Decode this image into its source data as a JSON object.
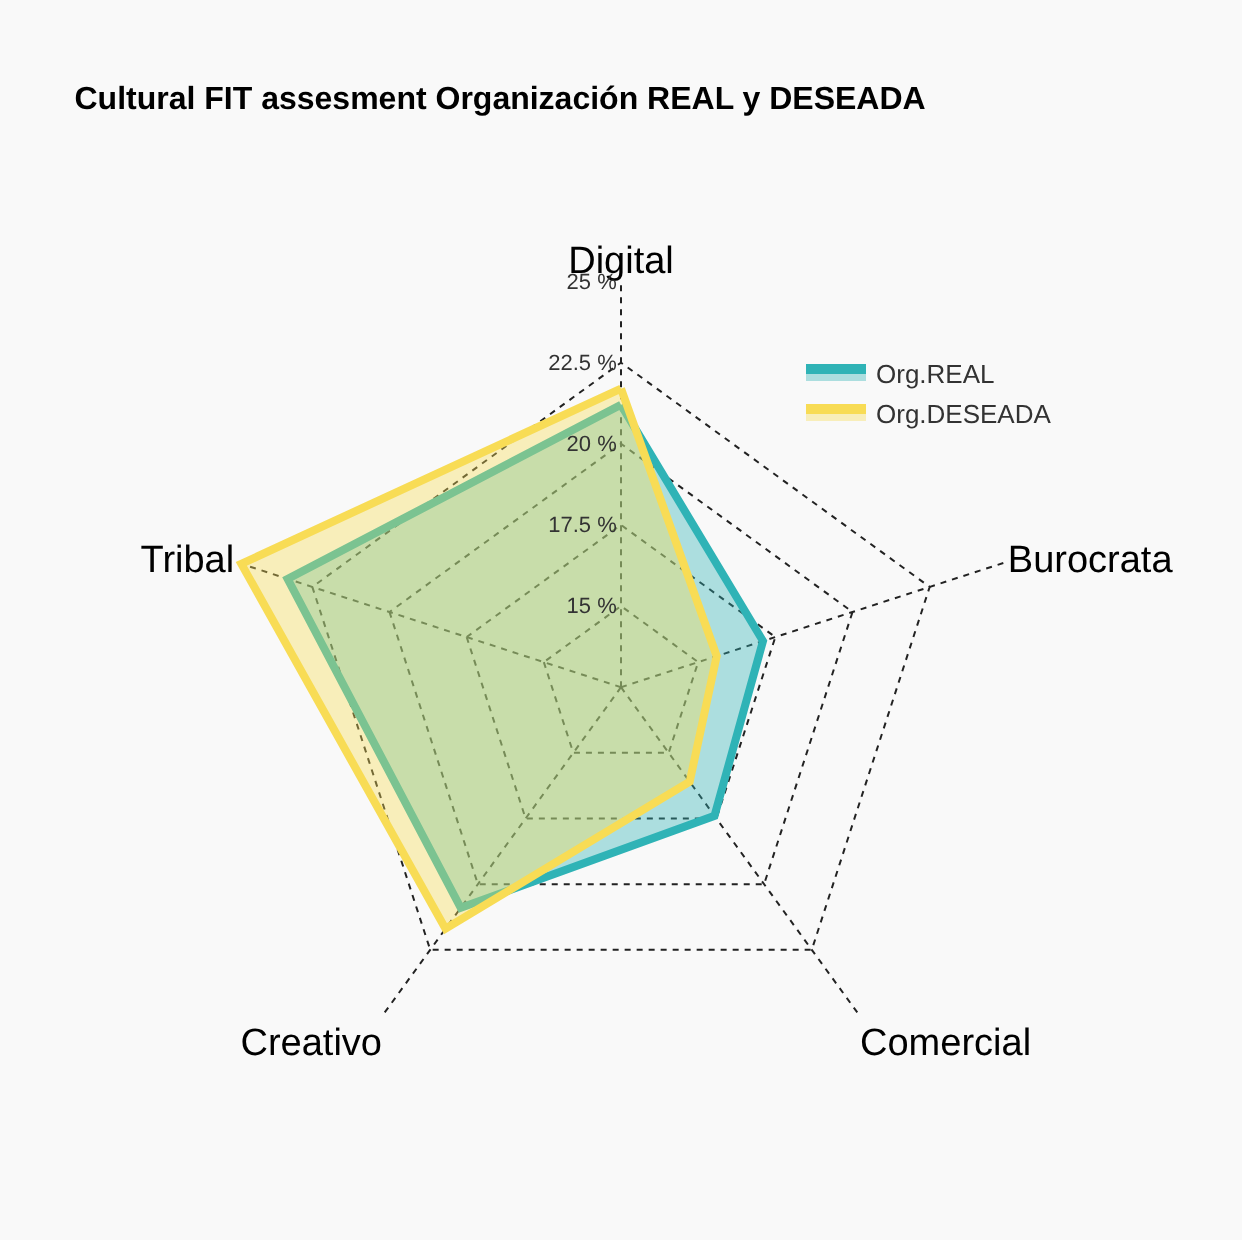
{
  "chart_data": {
    "type": "radar",
    "title": "Cultural FIT assesment Organización REAL y DESEADA",
    "categories": [
      "Digital",
      "Burocrata",
      "Comercial",
      "Creativo",
      "Tribal"
    ],
    "series": [
      {
        "name": "Org.REAL",
        "color": "#2fb3b6",
        "values": [
          21.2,
          17.1,
          17.4,
          20.9,
          23.3
        ]
      },
      {
        "name": "Org.DESEADA",
        "color": "#f8dc55",
        "values": [
          21.7,
          15.6,
          16.1,
          21.7,
          24.8
        ]
      }
    ],
    "ylim": [
      12.5,
      25
    ],
    "yticks": [
      {
        "value": 15,
        "label": "15 %"
      },
      {
        "value": 17.5,
        "label": "17.5 %"
      },
      {
        "value": 20,
        "label": "20 %"
      },
      {
        "value": 22.5,
        "label": "22.5 %"
      },
      {
        "value": 25,
        "label": "25 %"
      }
    ],
    "grid": true,
    "legend": "top right",
    "line_style": "solid"
  }
}
